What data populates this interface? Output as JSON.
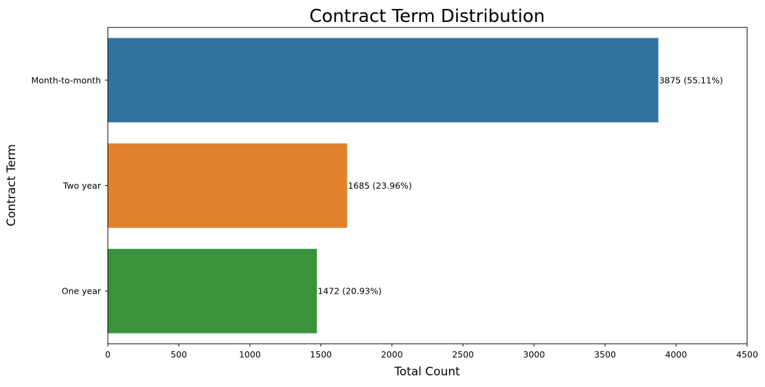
{
  "chart_data": {
    "type": "bar",
    "orientation": "horizontal",
    "title": "Contract Term Distribution",
    "xlabel": "Total Count",
    "ylabel": "Contract Term",
    "categories": [
      "Month-to-month",
      "Two year",
      "One year"
    ],
    "values": [
      3875,
      1685,
      1472
    ],
    "data_labels": [
      "3875 (55.11%)",
      "1685 (23.96%)",
      "1472 (20.93%)"
    ],
    "colors": [
      "#3274a1",
      "#e1812c",
      "#3a923a"
    ],
    "xlim": [
      0,
      4500
    ],
    "xticks": [
      0,
      500,
      1000,
      1500,
      2000,
      2500,
      3000,
      3500,
      4000,
      4500
    ],
    "grid": false,
    "legend": "none"
  }
}
